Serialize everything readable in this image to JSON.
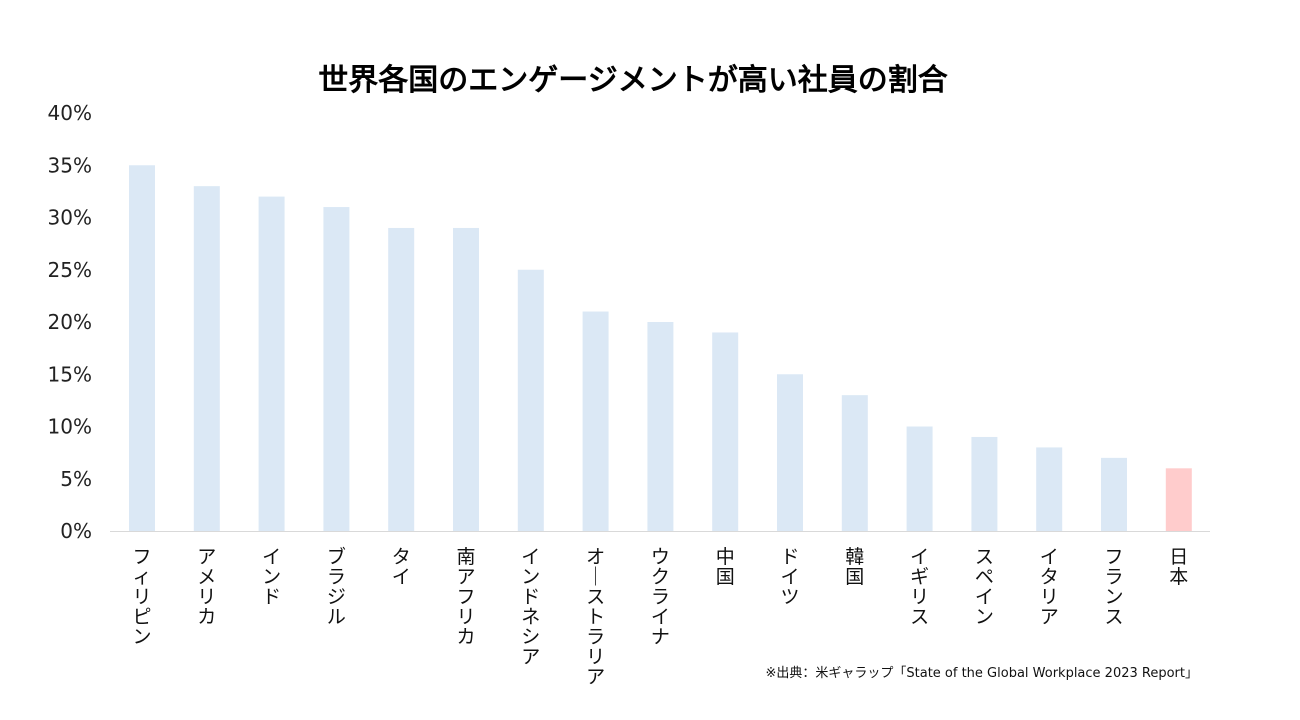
{
  "chart_data": {
    "type": "bar",
    "title": "世界各国のエンゲージメントが高い社員の割合",
    "categories": [
      "フィリピン",
      "アメリカ",
      "インド",
      "ブラジル",
      "タイ",
      "南アフリカ",
      "インドネシア",
      "オーストラリア",
      "ウクライナ",
      "中国",
      "ドイツ",
      "韓国",
      "イギリス",
      "スペイン",
      "イタリア",
      "フランス",
      "日本"
    ],
    "values": [
      0.35,
      0.33,
      0.32,
      0.31,
      0.29,
      0.29,
      0.25,
      0.21,
      0.2,
      0.19,
      0.15,
      0.13,
      0.1,
      0.09,
      0.08,
      0.07,
      0.06
    ],
    "ylim": [
      0,
      0.4
    ],
    "yticks": [
      0,
      0.05,
      0.1,
      0.15,
      0.2,
      0.25,
      0.3,
      0.35,
      0.4
    ],
    "ytick_labels": [
      "0%",
      "5%",
      "10%",
      "15%",
      "20%",
      "25%",
      "30%",
      "35%",
      "40%"
    ],
    "grid": false,
    "colors": {
      "default_bar": "#dbe8f5",
      "highlight_bar": "#ffcccc",
      "axis": "#d9d9d9"
    },
    "highlight_category": "日本",
    "source_note": "※出典：米ギャラップ「State of the Global Workplace 2023 Report」"
  }
}
